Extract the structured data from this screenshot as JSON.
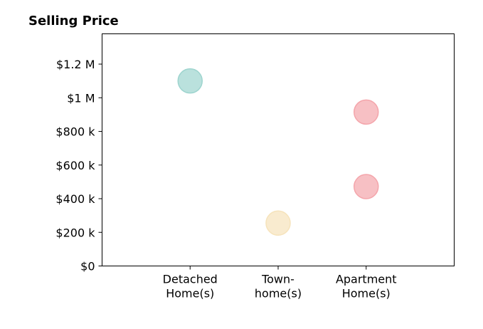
{
  "chart_data": {
    "type": "scatter",
    "title": "Selling Price",
    "xlabel": "",
    "ylabel": "",
    "categories": [
      [
        "Detached",
        "Home(s)"
      ],
      [
        "Town-",
        "home(s)"
      ],
      [
        "Apartment",
        "Home(s)"
      ]
    ],
    "xlim": [
      0,
      4
    ],
    "ylim": [
      0,
      1380000
    ],
    "y_ticks": [
      {
        "value": 0,
        "label": "$0"
      },
      {
        "value": 200000,
        "label": "$200 k"
      },
      {
        "value": 400000,
        "label": "$400 k"
      },
      {
        "value": 600000,
        "label": "$600 k"
      },
      {
        "value": 800000,
        "label": "$800 k"
      },
      {
        "value": 1000000,
        "label": "$1 M"
      },
      {
        "value": 1200000,
        "label": "$1.2 M"
      }
    ],
    "points": [
      {
        "category": "Detached Home(s)",
        "x": 1,
        "y": 1100000,
        "color": "#9dd4ce"
      },
      {
        "category": "Town- home(s)",
        "x": 2,
        "y": 255000,
        "color": "#f6e3bb"
      },
      {
        "category": "Apartment Home(s)",
        "x": 3,
        "y": 915000,
        "color": "#f4a5ab"
      },
      {
        "category": "Apartment Home(s)",
        "x": 3,
        "y": 472000,
        "color": "#f4a5ab"
      }
    ],
    "grid": false,
    "legend": "none"
  }
}
